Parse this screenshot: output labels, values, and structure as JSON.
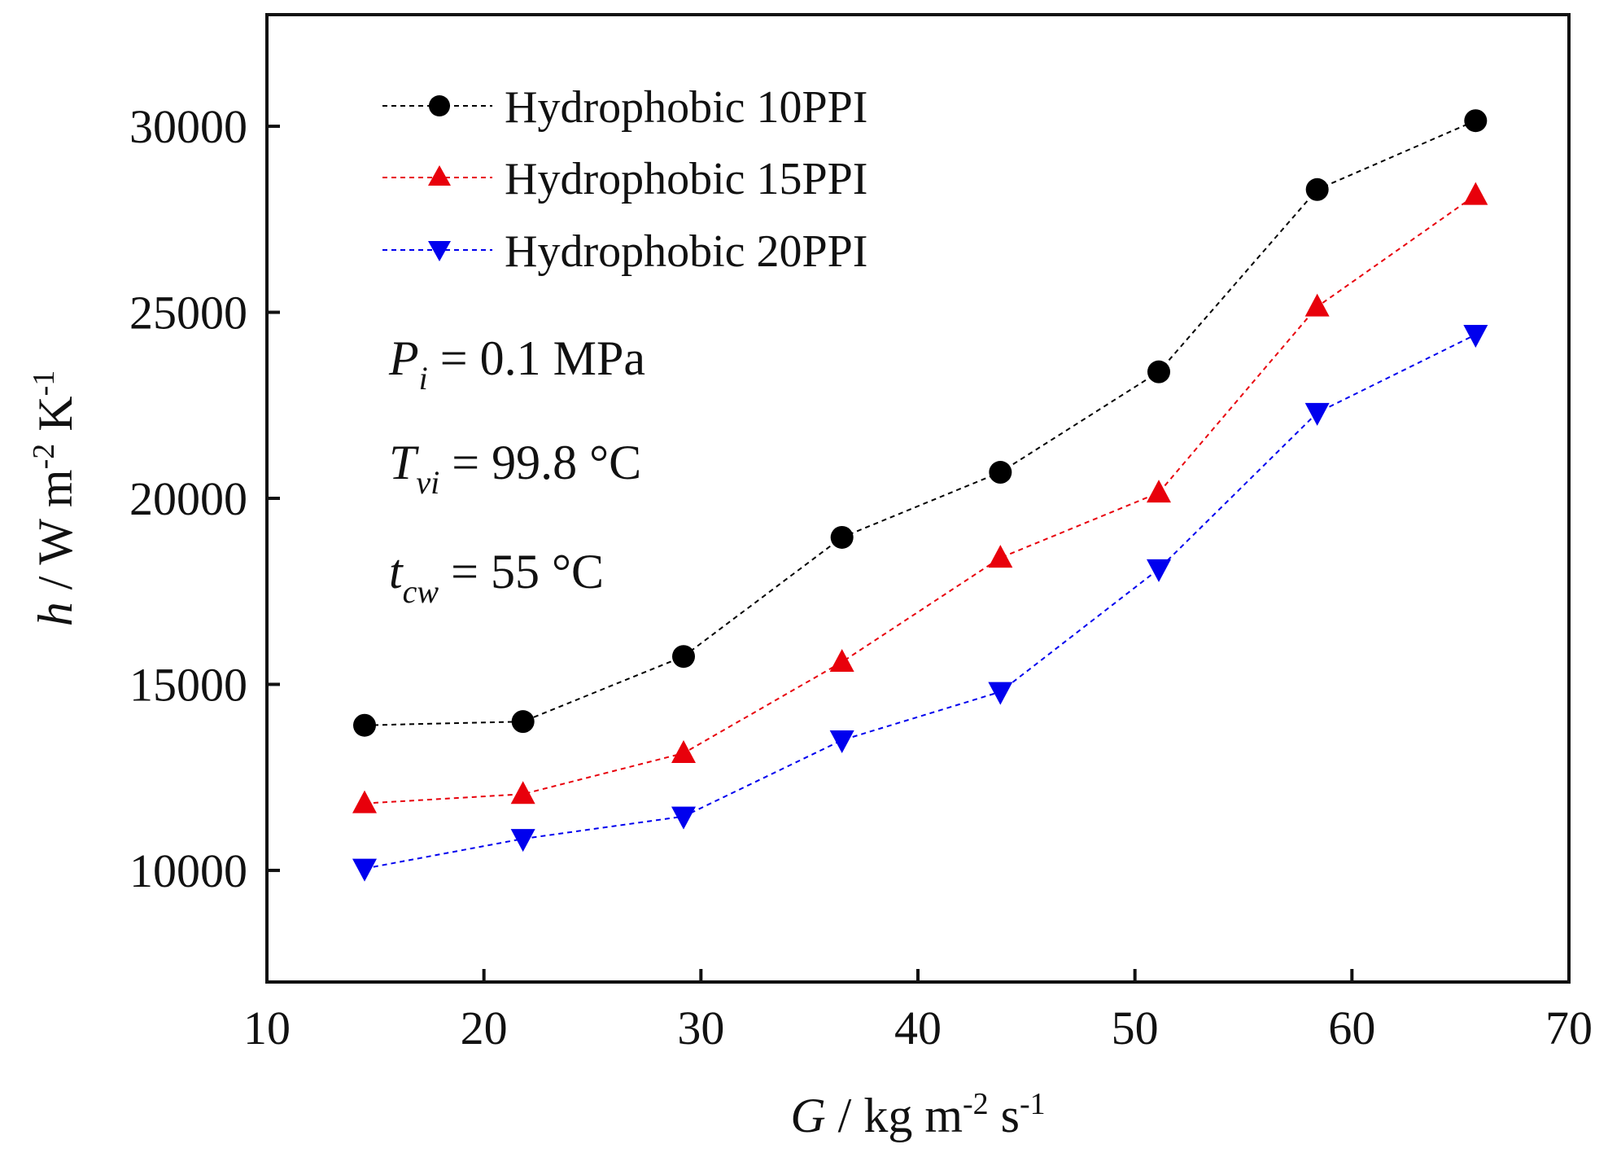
{
  "chart_data": {
    "type": "line",
    "xlabel": {
      "italic": "G",
      "text": " / kg m",
      "sup1": "-2",
      "text2": " s",
      "sup2": "-1"
    },
    "ylabel": {
      "italic": "h",
      "text": " / W m",
      "sup1": "-2",
      "text2": " K",
      "sup2": "-1"
    },
    "xlim": [
      10,
      70
    ],
    "ylim": [
      7000,
      33000
    ],
    "xticks": [
      10,
      20,
      30,
      40,
      50,
      60,
      70
    ],
    "yticks": [
      10000,
      15000,
      20000,
      25000,
      30000
    ],
    "grid": false,
    "legend_position": "top-left",
    "series": [
      {
        "name": "Hydrophobic 10PPI",
        "color": "#000000",
        "marker": "circle",
        "x": [
          14.5,
          21.8,
          29.2,
          36.5,
          43.8,
          51.1,
          58.4,
          65.7
        ],
        "y": [
          13900,
          14000,
          15750,
          18950,
          20700,
          23400,
          28300,
          30150
        ]
      },
      {
        "name": "Hydrophobic 15PPI",
        "color": "#e8000b",
        "marker": "triangle-up",
        "x": [
          14.5,
          21.8,
          29.2,
          36.5,
          43.8,
          51.1,
          58.4,
          65.7
        ],
        "y": [
          11800,
          12050,
          13150,
          15600,
          18400,
          20150,
          25150,
          28150
        ]
      },
      {
        "name": "Hydrophobic 20PPI",
        "color": "#0000ee",
        "marker": "triangle-down",
        "x": [
          14.5,
          21.8,
          29.2,
          36.5,
          43.8,
          51.1,
          58.4,
          65.7
        ],
        "y": [
          10050,
          10850,
          11450,
          13500,
          14800,
          18100,
          22300,
          24400
        ]
      }
    ],
    "annotations": [
      {
        "symbol": "P",
        "sub": "i",
        "rest": " = 0.1 MPa"
      },
      {
        "symbol": "T",
        "sub": "vi",
        "rest": " = 99.8 °C"
      },
      {
        "symbol": "t",
        "sub": "cw",
        "rest": " = 55 °C"
      }
    ]
  }
}
